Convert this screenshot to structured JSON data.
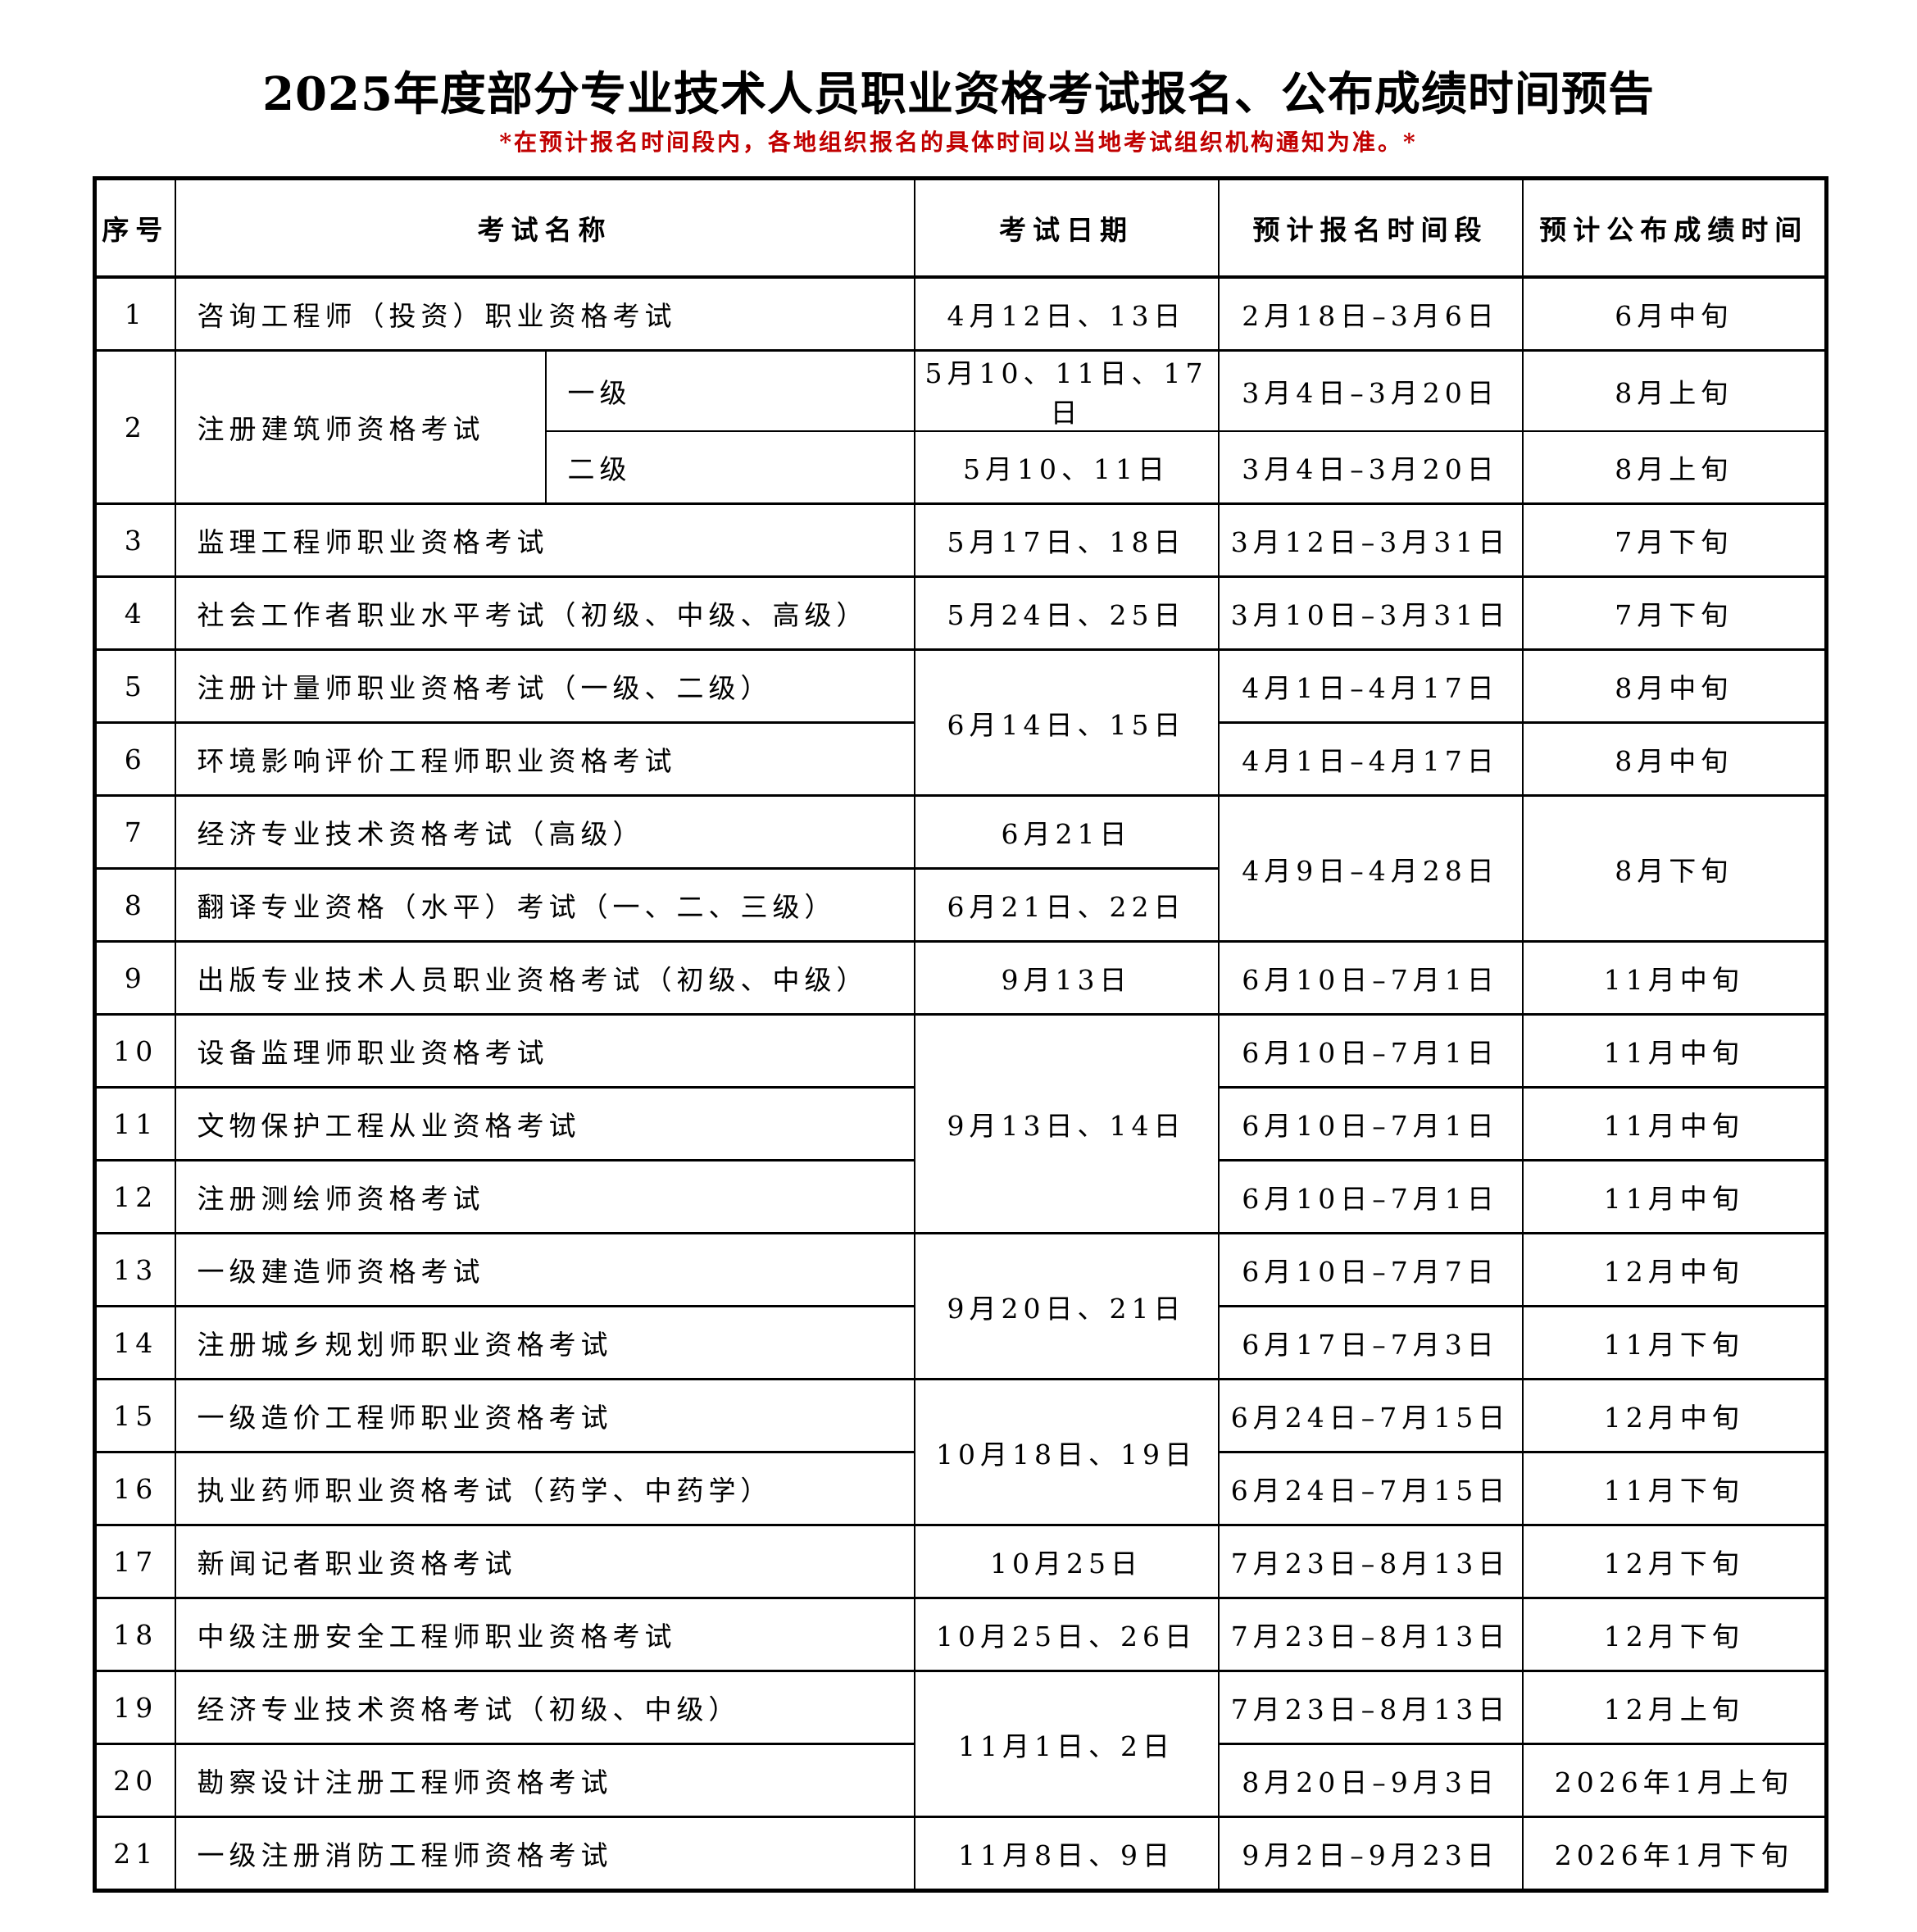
{
  "title": "2025年度部分专业技术人员职业资格考试报名、公布成绩时间预告",
  "subtitle": "*在预计报名时间段内，各地组织报名的具体时间以当地考试组织机构通知为准。*",
  "table": {
    "headers": {
      "no": "序号",
      "name": "考试名称",
      "date": "考试日期",
      "registration": "预计报名时间段",
      "score": "预计公布成绩时间"
    },
    "rows": [
      {
        "no": "1",
        "name": "咨询工程师（投资）职业资格考试",
        "date": "4月12日、13日",
        "registration": "2月18日–3月6日",
        "score": "6月中旬"
      },
      {
        "no": "2",
        "name": "注册建筑师资格考试",
        "levels": [
          {
            "level": "一级",
            "date": "5月10、11日、17日",
            "registration": "3月4日–3月20日",
            "score": "8月上旬"
          },
          {
            "level": "二级",
            "date": "5月10、11日",
            "registration": "3月4日–3月20日",
            "score": "8月上旬"
          }
        ]
      },
      {
        "no": "3",
        "name": "监理工程师职业资格考试",
        "date": "5月17日、18日",
        "registration": "3月12日–3月31日",
        "score": "7月下旬"
      },
      {
        "no": "4",
        "name": "社会工作者职业水平考试（初级、中级、高级）",
        "date": "5月24日、25日",
        "registration": "3月10日–3月31日",
        "score": "7月下旬"
      },
      {
        "no": "5",
        "name": "注册计量师职业资格考试（一级、二级）",
        "date": "6月14日、15日",
        "date_rowspan": 2,
        "registration": "4月1日–4月17日",
        "score": "8月中旬"
      },
      {
        "no": "6",
        "name": "环境影响评价工程师职业资格考试",
        "registration": "4月1日–4月17日",
        "score": "8月中旬"
      },
      {
        "no": "7",
        "name": "经济专业技术资格考试（高级）",
        "date": "6月21日",
        "registration": "4月9日–4月28日",
        "registration_rowspan": 2,
        "score": "8月下旬",
        "score_rowspan": 2
      },
      {
        "no": "8",
        "name": "翻译专业资格（水平）考试（一、二、三级）",
        "date": "6月21日、22日"
      },
      {
        "no": "9",
        "name": "出版专业技术人员职业资格考试（初级、中级）",
        "date": "9月13日",
        "registration": "6月10日–7月1日",
        "score": "11月中旬"
      },
      {
        "no": "10",
        "name": "设备监理师职业资格考试",
        "date": "9月13日、14日",
        "date_rowspan": 3,
        "registration": "6月10日–7月1日",
        "score": "11月中旬"
      },
      {
        "no": "11",
        "name": "文物保护工程从业资格考试",
        "registration": "6月10日–7月1日",
        "score": "11月中旬"
      },
      {
        "no": "12",
        "name": "注册测绘师资格考试",
        "registration": "6月10日–7月1日",
        "score": "11月中旬"
      },
      {
        "no": "13",
        "name": "一级建造师资格考试",
        "date": "9月20日、21日",
        "date_rowspan": 2,
        "registration": "6月10日–7月7日",
        "score": "12月中旬"
      },
      {
        "no": "14",
        "name": "注册城乡规划师职业资格考试",
        "registration": "6月17日–7月3日",
        "score": "11月下旬"
      },
      {
        "no": "15",
        "name": "一级造价工程师职业资格考试",
        "date": "10月18日、19日",
        "date_rowspan": 2,
        "registration": "6月24日–7月15日",
        "score": "12月中旬"
      },
      {
        "no": "16",
        "name": "执业药师职业资格考试（药学、中药学）",
        "registration": "6月24日–7月15日",
        "score": "11月下旬"
      },
      {
        "no": "17",
        "name": "新闻记者职业资格考试",
        "date": "10月25日",
        "registration": "7月23日–8月13日",
        "score": "12月下旬"
      },
      {
        "no": "18",
        "name": "中级注册安全工程师职业资格考试",
        "date": "10月25日、26日",
        "registration": "7月23日–8月13日",
        "score": "12月下旬"
      },
      {
        "no": "19",
        "name": "经济专业技术资格考试（初级、中级）",
        "date": "11月1日、2日",
        "date_rowspan": 2,
        "registration": "7月23日–8月13日",
        "score": "12月上旬"
      },
      {
        "no": "20",
        "name": "勘察设计注册工程师资格考试",
        "registration": "8月20日–9月3日",
        "score": "2026年1月上旬"
      },
      {
        "no": "21",
        "name": "一级注册消防工程师资格考试",
        "date": "11月8日、9日",
        "registration": "9月2日–9月23日",
        "score": "2026年1月下旬"
      }
    ]
  }
}
